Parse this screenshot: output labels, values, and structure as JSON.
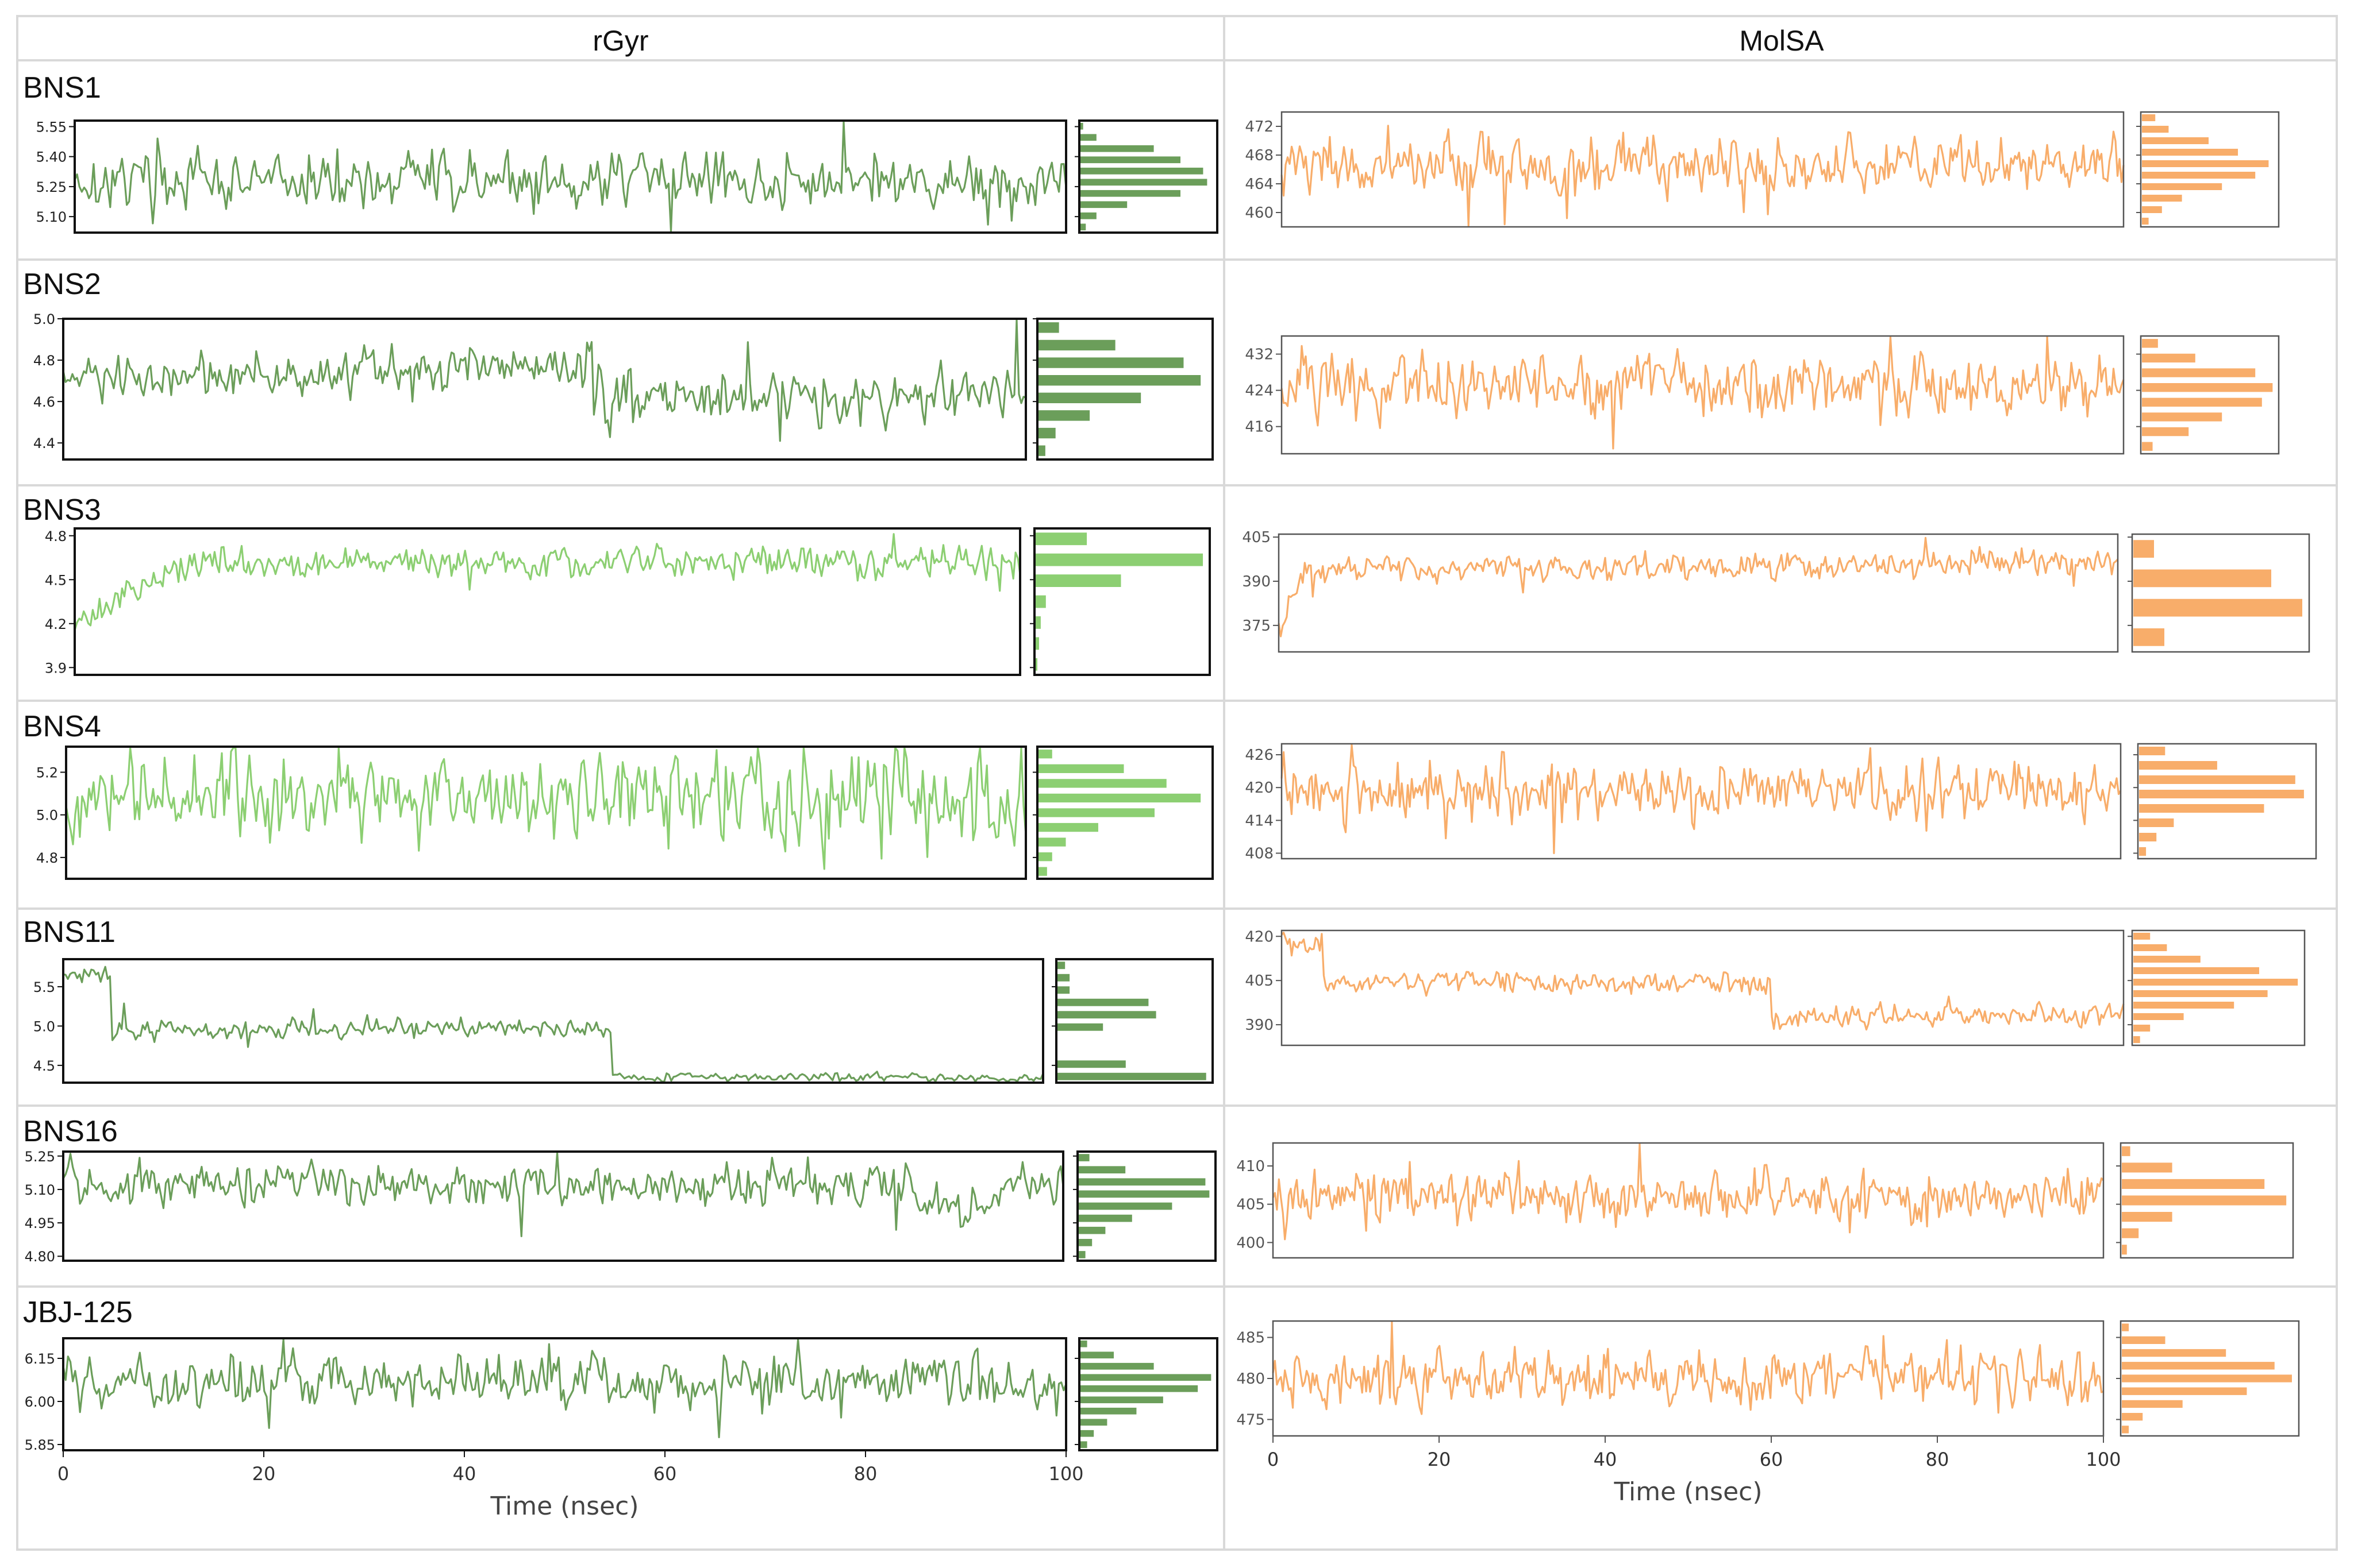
{
  "headers": {
    "left": "rGyr",
    "right": "MolSA"
  },
  "colors": {
    "rgyr_line": "#6b9e5a",
    "rgyr_light": "#8ccf72",
    "molsa_line": "#f8ad6a",
    "grid_border": "#d9d9d9"
  },
  "x_axis": {
    "label": "Time (nsec)",
    "ticks": [
      "0",
      "20",
      "40",
      "60",
      "80",
      "100"
    ],
    "range": [
      0,
      100
    ]
  },
  "rows": [
    {
      "label": "BNS1"
    },
    {
      "label": "BNS2"
    },
    {
      "label": "BNS3"
    },
    {
      "label": "BNS4"
    },
    {
      "label": "BNS11"
    },
    {
      "label": "BNS16"
    },
    {
      "label": "JBJ-125"
    }
  ],
  "chart_data": [
    {
      "type": "line",
      "row": "BNS1",
      "metric": "rGyr",
      "ylim": [
        5.02,
        5.58
      ],
      "yticks": [
        "5.55",
        "5.40",
        "5.25",
        "5.10"
      ],
      "pattern": "noise",
      "base": 5.28,
      "amp": 0.07,
      "color": "#6b9e5a",
      "hist": [
        0.02,
        0.12,
        0.55,
        0.75,
        0.92,
        0.95,
        0.75,
        0.35,
        0.12,
        0.04
      ]
    },
    {
      "type": "line",
      "row": "BNS1",
      "metric": "MolSA",
      "ylim": [
        458,
        474
      ],
      "yticks": [
        "472",
        "468",
        "464",
        "460"
      ],
      "pattern": "noise",
      "base": 466.5,
      "amp": 1.8,
      "color": "#f8ad6a",
      "hist": [
        0.1,
        0.2,
        0.5,
        0.72,
        0.95,
        0.85,
        0.6,
        0.3,
        0.15,
        0.05
      ]
    },
    {
      "type": "line",
      "row": "BNS2",
      "metric": "rGyr",
      "ylim": [
        4.32,
        5.0
      ],
      "yticks": [
        "5.0",
        "4.8",
        "4.6",
        "4.4"
      ],
      "pattern": "bns2",
      "base": 4.7,
      "amp": 0.06,
      "color": "#6b9e5a",
      "hist": [
        0.12,
        0.45,
        0.85,
        0.95,
        0.6,
        0.3,
        0.1,
        0.04
      ]
    },
    {
      "type": "line",
      "row": "BNS2",
      "metric": "MolSA",
      "ylim": [
        410,
        436
      ],
      "yticks": [
        "432",
        "424",
        "416"
      ],
      "pattern": "noise",
      "base": 425,
      "amp": 3,
      "color": "#f8ad6a",
      "hist": [
        0.12,
        0.4,
        0.85,
        0.98,
        0.9,
        0.6,
        0.35,
        0.08
      ]
    },
    {
      "type": "line",
      "row": "BNS3",
      "metric": "rGyr",
      "ylim": [
        3.85,
        4.85
      ],
      "yticks": [
        "4.8",
        "4.5",
        "4.2",
        "3.9"
      ],
      "pattern": "bns3",
      "base": 4.6,
      "amp": 0.05,
      "color": "#8ccf72",
      "hist": [
        0.3,
        0.98,
        0.5,
        0.06,
        0.03,
        0.02,
        0.01
      ]
    },
    {
      "type": "line",
      "row": "BNS3",
      "metric": "MolSA",
      "ylim": [
        366,
        406
      ],
      "yticks": [
        "405",
        "390",
        "375"
      ],
      "pattern": "bns3m",
      "base": 394,
      "amp": 2.5,
      "color": "#f8ad6a",
      "hist": [
        0.12,
        0.8,
        0.98,
        0.18
      ]
    },
    {
      "type": "line",
      "row": "BNS4",
      "metric": "rGyr",
      "ylim": [
        4.7,
        5.32
      ],
      "yticks": [
        "5.2",
        "5.0",
        "4.8"
      ],
      "pattern": "noise",
      "base": 5.08,
      "amp": 0.1,
      "color": "#8ccf72",
      "hist": [
        0.08,
        0.5,
        0.75,
        0.95,
        0.68,
        0.35,
        0.16,
        0.08,
        0.05
      ]
    },
    {
      "type": "line",
      "row": "BNS4",
      "metric": "MolSA",
      "ylim": [
        407,
        428
      ],
      "yticks": [
        "426",
        "420",
        "414",
        "408"
      ],
      "pattern": "noise",
      "base": 419.5,
      "amp": 2.5,
      "color": "#f8ad6a",
      "hist": [
        0.15,
        0.45,
        0.9,
        0.95,
        0.72,
        0.2,
        0.1,
        0.04
      ]
    },
    {
      "type": "line",
      "row": "BNS11",
      "metric": "rGyr",
      "ylim": [
        4.28,
        5.85
      ],
      "yticks": [
        "5.5",
        "5.0",
        "4.5"
      ],
      "pattern": "bns11",
      "base": 4.95,
      "amp": 0.06,
      "color": "#6b9e5a",
      "hist": [
        0.05,
        0.08,
        0.08,
        0.6,
        0.65,
        0.3,
        0.0,
        0.0,
        0.45,
        0.98
      ]
    },
    {
      "type": "line",
      "row": "BNS11",
      "metric": "MolSA",
      "ylim": [
        383,
        422
      ],
      "yticks": [
        "420",
        "405",
        "390"
      ],
      "pattern": "bns11m",
      "base": 404,
      "amp": 1.8,
      "color": "#f8ad6a",
      "hist": [
        0.1,
        0.2,
        0.4,
        0.75,
        0.98,
        0.8,
        0.6,
        0.3,
        0.1,
        0.04
      ]
    },
    {
      "type": "line",
      "row": "BNS16",
      "metric": "rGyr",
      "ylim": [
        4.78,
        5.27
      ],
      "yticks": [
        "5.25",
        "5.10",
        "4.95",
        "4.80"
      ],
      "pattern": "bns16",
      "base": 5.1,
      "amp": 0.045,
      "color": "#6b9e5a",
      "hist": [
        0.08,
        0.35,
        0.95,
        0.98,
        0.7,
        0.4,
        0.2,
        0.1,
        0.05
      ]
    },
    {
      "type": "line",
      "row": "BNS16",
      "metric": "MolSA",
      "ylim": [
        398,
        413
      ],
      "yticks": [
        "410",
        "405",
        "400"
      ],
      "pattern": "noise",
      "base": 406,
      "amp": 1.5,
      "color": "#f8ad6a",
      "hist": [
        0.05,
        0.3,
        0.85,
        0.98,
        0.3,
        0.1,
        0.03
      ]
    },
    {
      "type": "line",
      "row": "JBJ-125",
      "metric": "rGyr",
      "ylim": [
        5.83,
        6.22
      ],
      "yticks": [
        "6.15",
        "6.00",
        "5.85"
      ],
      "pattern": "noise",
      "base": 6.07,
      "amp": 0.045,
      "color": "#6b9e5a",
      "hist": [
        0.05,
        0.25,
        0.55,
        0.98,
        0.88,
        0.62,
        0.42,
        0.2,
        0.1,
        0.05
      ]
    },
    {
      "type": "line",
      "row": "JBJ-125",
      "metric": "MolSA",
      "ylim": [
        473,
        487
      ],
      "yticks": [
        "485",
        "480",
        "475"
      ],
      "pattern": "noise",
      "base": 480,
      "amp": 1.6,
      "color": "#f8ad6a",
      "hist": [
        0.04,
        0.25,
        0.6,
        0.88,
        0.98,
        0.72,
        0.35,
        0.12,
        0.04
      ]
    }
  ]
}
